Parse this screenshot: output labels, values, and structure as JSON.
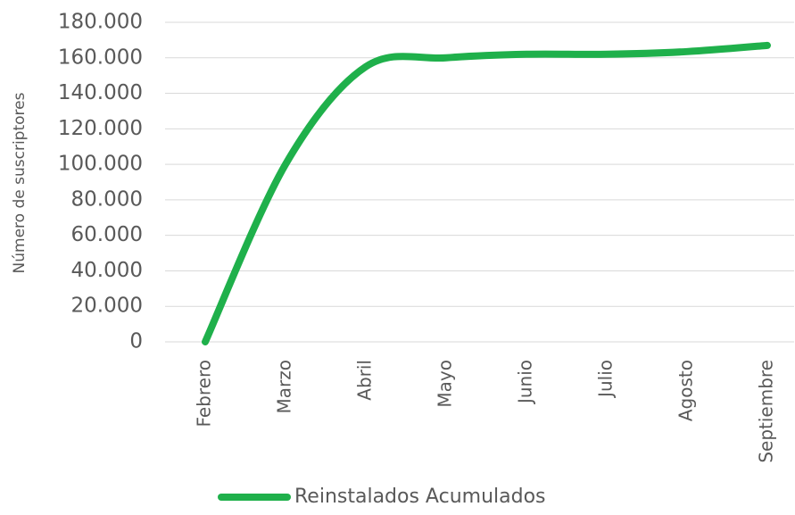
{
  "chart_data": {
    "type": "line",
    "y_label": "Número de suscriptores",
    "categories": [
      "Febrero",
      "Marzo",
      "Abril",
      "Mayo",
      "Junio",
      "Julio",
      "Agosto",
      "Septiembre"
    ],
    "series": [
      {
        "name": "Reinstalados Acumulados",
        "color": "#1fb04b",
        "values": [
          0,
          100000,
          155000,
          160000,
          162000,
          162000,
          163500,
          167000
        ]
      }
    ],
    "ylim": [
      0,
      180000
    ],
    "yticks": [
      0,
      {
        "value": 20000,
        "label": "20.000"
      },
      {
        "value": 40000,
        "label": "40.000"
      },
      {
        "value": 60000,
        "label": "60.000"
      },
      {
        "value": 80000,
        "label": "80.000"
      },
      {
        "value": 100000,
        "label": "100.000"
      },
      {
        "value": 120000,
        "label": "120.000"
      },
      {
        "value": 140000,
        "label": "140.000"
      },
      {
        "value": 160000,
        "label": "160.000"
      },
      {
        "value": 180000,
        "label": "180.000"
      }
    ],
    "grid": true,
    "legend": "bottom"
  }
}
